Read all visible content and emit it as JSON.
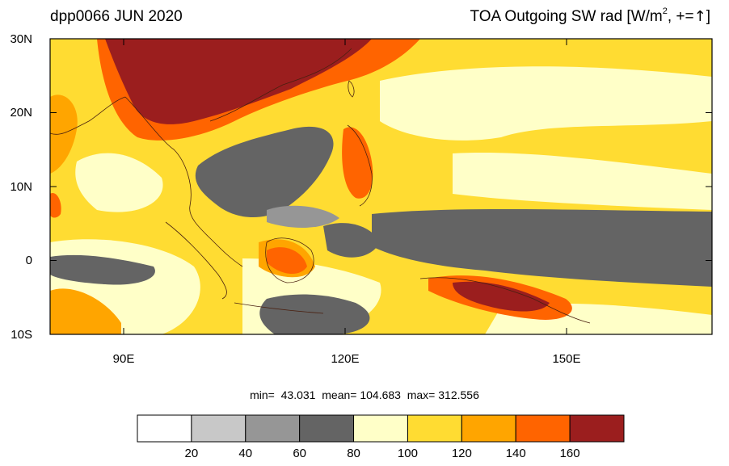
{
  "title_left": "dpp0066 JUN 2020",
  "title_right": {
    "text": "TOA Outgoing SW rad [W/m",
    "sup": "2",
    "suffix": ", +=",
    "arrow": "↑",
    "close": "]"
  },
  "lat_labels": [
    "30N",
    "20N",
    "10N",
    "0",
    "10S"
  ],
  "lon_labels": [
    "90E",
    "120E",
    "150E"
  ],
  "stats": {
    "min_label": "min=",
    "min": "43.031",
    "mean_label": "mean=",
    "mean": "104.683",
    "max_label": "max=",
    "max": "312.556"
  },
  "colorbar": {
    "labels": [
      "20",
      "40",
      "60",
      "80",
      "100",
      "120",
      "140",
      "160"
    ],
    "colors": [
      "#ffffff",
      "#c8c8c8",
      "#969696",
      "#646464",
      "#ffffc8",
      "#ffdc32",
      "#ffa500",
      "#ff6400",
      "#9b1e1e"
    ]
  },
  "map_colors": {
    "ocean_base": "#ffdc32",
    "ocean_light": "#ffffc8",
    "cloud_dark": "#646464",
    "cloud_mid": "#969696",
    "orange": "#ffa500",
    "red_orange": "#ff6400",
    "dark_red": "#9b1e1e",
    "coast": "#4a2010"
  }
}
